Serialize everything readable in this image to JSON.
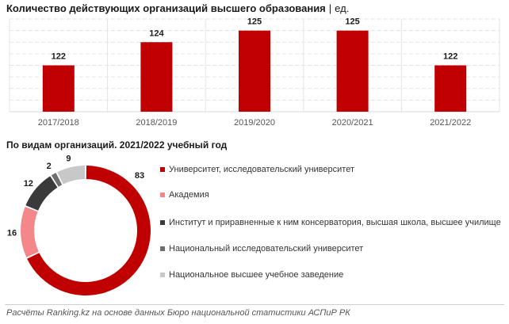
{
  "header": {
    "title": "Количество действующих организаций высшего образования",
    "separator": "|",
    "unit": "ед."
  },
  "donut_title": "По видам организаций. 2021/2022 учебный год",
  "footer": "Расчёты Ranking.kz на основе данных Бюро национальной статистики АСПиР РК",
  "colors": {
    "bar": "#c00000",
    "grid": "#e3e3e3",
    "axis_text": "#555555"
  },
  "chart_data": [
    {
      "type": "bar",
      "categories": [
        "2017/2018",
        "2018/2019",
        "2019/2020",
        "2020/2021",
        "2021/2022"
      ],
      "values": [
        122,
        124,
        125,
        125,
        122
      ],
      "title": "Количество действующих организаций высшего образования",
      "ylim": [
        118,
        126
      ],
      "grid": true
    },
    {
      "type": "pie",
      "donut": true,
      "title": "По видам организаций. 2021/2022 учебный год",
      "legend_position": "right",
      "categories": [
        "Университет, исследовательский университет",
        "Академия",
        "Институт и приравненные к ним консерватория, высшая школа, высшее училище",
        "Национальный  исследовательский университет",
        "Национальное высшее учебное заведение"
      ],
      "values": [
        83,
        16,
        12,
        2,
        9
      ],
      "colors": [
        "#c00000",
        "#f4878a",
        "#3a3a3a",
        "#6e6e6e",
        "#c8c8c8"
      ]
    }
  ]
}
